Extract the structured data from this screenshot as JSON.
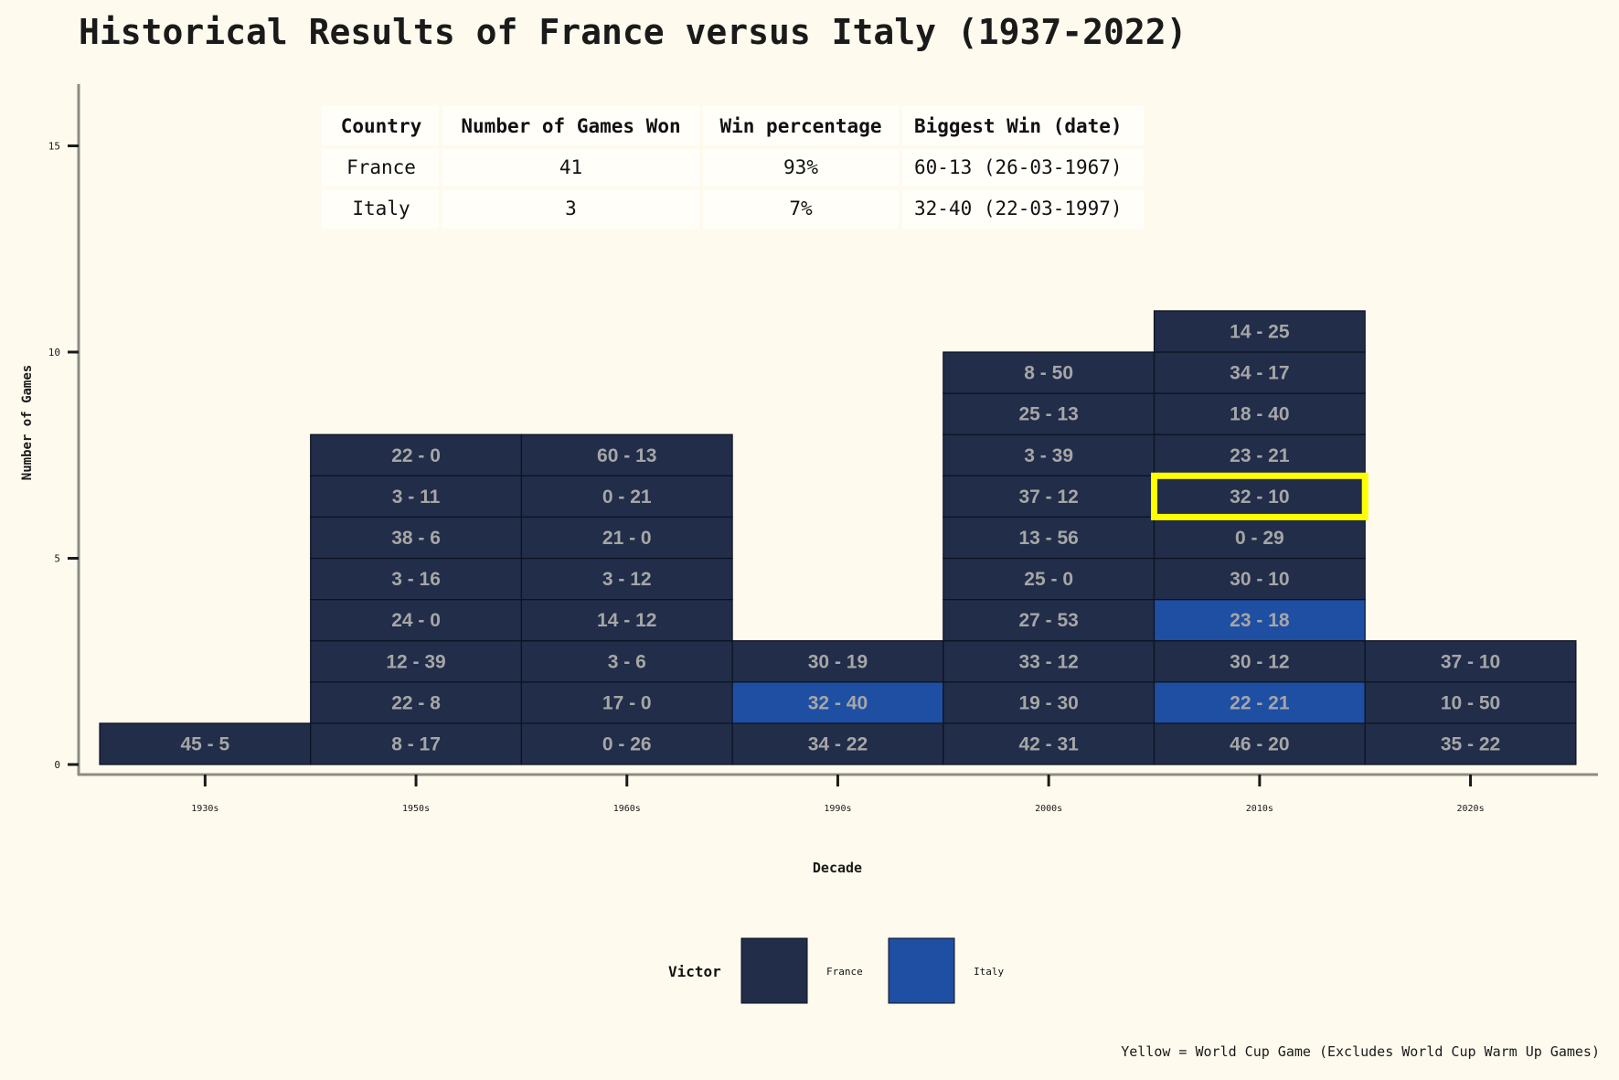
{
  "chart_data": {
    "type": "bar",
    "subtype": "stacked-tiles",
    "title": "Historical Results of France versus Italy (1937-2022)",
    "xlabel": "Decade",
    "ylabel": "Number of Games",
    "ylim": [
      0,
      16.5
    ],
    "yticks": [
      0,
      5,
      10,
      15
    ],
    "categories": [
      "1930s",
      "1950s",
      "1960s",
      "1990s",
      "2000s",
      "2010s",
      "2020s"
    ],
    "columns": [
      {
        "decade": "1930s",
        "games": [
          {
            "score": "45 - 5",
            "victor": "France",
            "world_cup": false
          }
        ]
      },
      {
        "decade": "1950s",
        "games": [
          {
            "score": "8 - 17",
            "victor": "France",
            "world_cup": false
          },
          {
            "score": "22 - 8",
            "victor": "France",
            "world_cup": false
          },
          {
            "score": "12 - 39",
            "victor": "France",
            "world_cup": false
          },
          {
            "score": "24 - 0",
            "victor": "France",
            "world_cup": false
          },
          {
            "score": "3 - 16",
            "victor": "France",
            "world_cup": false
          },
          {
            "score": "38 - 6",
            "victor": "France",
            "world_cup": false
          },
          {
            "score": "3 - 11",
            "victor": "France",
            "world_cup": false
          },
          {
            "score": "22 - 0",
            "victor": "France",
            "world_cup": false
          }
        ]
      },
      {
        "decade": "1960s",
        "games": [
          {
            "score": "0 - 26",
            "victor": "France",
            "world_cup": false
          },
          {
            "score": "17 - 0",
            "victor": "France",
            "world_cup": false
          },
          {
            "score": "3 - 6",
            "victor": "France",
            "world_cup": false
          },
          {
            "score": "14 - 12",
            "victor": "France",
            "world_cup": false
          },
          {
            "score": "3 - 12",
            "victor": "France",
            "world_cup": false
          },
          {
            "score": "21 - 0",
            "victor": "France",
            "world_cup": false
          },
          {
            "score": "0 - 21",
            "victor": "France",
            "world_cup": false
          },
          {
            "score": "60 - 13",
            "victor": "France",
            "world_cup": false
          }
        ]
      },
      {
        "decade": "1990s",
        "games": [
          {
            "score": "34 - 22",
            "victor": "France",
            "world_cup": false
          },
          {
            "score": "32 - 40",
            "victor": "Italy",
            "world_cup": false
          },
          {
            "score": "30 - 19",
            "victor": "France",
            "world_cup": false
          }
        ]
      },
      {
        "decade": "2000s",
        "games": [
          {
            "score": "42 - 31",
            "victor": "France",
            "world_cup": false
          },
          {
            "score": "19 - 30",
            "victor": "France",
            "world_cup": false
          },
          {
            "score": "33 - 12",
            "victor": "France",
            "world_cup": false
          },
          {
            "score": "27 - 53",
            "victor": "France",
            "world_cup": false
          },
          {
            "score": "25 - 0",
            "victor": "France",
            "world_cup": false
          },
          {
            "score": "13 - 56",
            "victor": "France",
            "world_cup": false
          },
          {
            "score": "37 - 12",
            "victor": "France",
            "world_cup": false
          },
          {
            "score": "3 - 39",
            "victor": "France",
            "world_cup": false
          },
          {
            "score": "25 - 13",
            "victor": "France",
            "world_cup": false
          },
          {
            "score": "8 - 50",
            "victor": "France",
            "world_cup": false
          }
        ]
      },
      {
        "decade": "2010s",
        "games": [
          {
            "score": "46 - 20",
            "victor": "France",
            "world_cup": false
          },
          {
            "score": "22 - 21",
            "victor": "Italy",
            "world_cup": false
          },
          {
            "score": "30 - 12",
            "victor": "France",
            "world_cup": false
          },
          {
            "score": "23 - 18",
            "victor": "Italy",
            "world_cup": false
          },
          {
            "score": "30 - 10",
            "victor": "France",
            "world_cup": false
          },
          {
            "score": "0 - 29",
            "victor": "France",
            "world_cup": false
          },
          {
            "score": "32 - 10",
            "victor": "France",
            "world_cup": true
          },
          {
            "score": "23 - 21",
            "victor": "France",
            "world_cup": false
          },
          {
            "score": "18 - 40",
            "victor": "France",
            "world_cup": false
          },
          {
            "score": "34 - 17",
            "victor": "France",
            "world_cup": false
          },
          {
            "score": "14 - 25",
            "victor": "France",
            "world_cup": false
          }
        ]
      },
      {
        "decade": "2020s",
        "games": [
          {
            "score": "35 - 22",
            "victor": "France",
            "world_cup": false
          },
          {
            "score": "10 - 50",
            "victor": "France",
            "world_cup": false
          },
          {
            "score": "37 - 10",
            "victor": "France",
            "world_cup": false
          }
        ]
      }
    ],
    "legend": {
      "title": "Victor",
      "placement": "bottom",
      "entries": [
        {
          "label": "France",
          "color": "#212d49"
        },
        {
          "label": "Italy",
          "color": "#1f4fa3"
        }
      ]
    },
    "summary_table": {
      "headers": [
        "Country",
        "Number of Games Won",
        "Win percentage",
        "Biggest Win (date)"
      ],
      "rows": [
        [
          "France",
          "41",
          "93%",
          "60-13 (26-03-1967)"
        ],
        [
          "Italy",
          "3",
          "7%",
          "32-40 (22-03-1997)"
        ]
      ]
    },
    "caption": "Yellow = World Cup Game (Excludes World Cup Warm Up Games)",
    "colors": {
      "background": "#fefaee",
      "france": "#212d49",
      "italy": "#1f4fa3",
      "world_cup_highlight": "#ffff00",
      "tile_text": "#a6a6a6",
      "axis": "#8c8c84"
    },
    "grid": false
  }
}
